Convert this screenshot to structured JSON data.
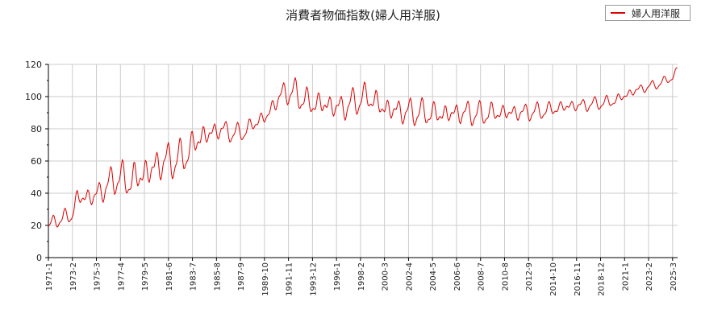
{
  "chart_data": {
    "type": "line",
    "title": "消費者物価指数(婦人用洋服)",
    "ylim": [
      0,
      120
    ],
    "y_ticks": [
      0,
      20,
      40,
      60,
      80,
      100,
      120
    ],
    "x_tick_labels": [
      "1971-1",
      "1973-2",
      "1975-3",
      "1977-4",
      "1979-5",
      "1981-6",
      "1983-7",
      "1985-8",
      "1987-9",
      "1989-10",
      "1991-11",
      "1993-12",
      "1996-1",
      "1998-2",
      "2000-3",
      "2002-4",
      "2004-5",
      "2006-6",
      "2008-7",
      "2010-8",
      "2012-9",
      "2014-10",
      "2016-11",
      "2018-12",
      "2021-1",
      "2023-2",
      "2025-3"
    ],
    "grid": true,
    "legend_position": "top-right",
    "series": [
      {
        "name": "婦人用洋服",
        "color": "#dd0000",
        "x_start": "1971-1",
        "x_end": "2025-8",
        "trend": [
          [
            1971.0,
            20
          ],
          [
            1972.0,
            24
          ],
          [
            1973.0,
            26
          ],
          [
            1973.5,
            37
          ],
          [
            1975.0,
            38
          ],
          [
            1976.0,
            44
          ],
          [
            1977.0,
            50
          ],
          [
            1978.0,
            47
          ],
          [
            1979.0,
            51
          ],
          [
            1980.0,
            55
          ],
          [
            1981.0,
            60
          ],
          [
            1982.0,
            60
          ],
          [
            1983.0,
            64
          ],
          [
            1984.0,
            74
          ],
          [
            1985.0,
            77
          ],
          [
            1986.0,
            80
          ],
          [
            1987.0,
            77
          ],
          [
            1988.0,
            78
          ],
          [
            1989.0,
            84
          ],
          [
            1990.0,
            88
          ],
          [
            1990.8,
            98
          ],
          [
            1991.6,
            103
          ],
          [
            1992.5,
            102
          ],
          [
            1993.5,
            96
          ],
          [
            1995.0,
            95
          ],
          [
            1996.5,
            93
          ],
          [
            1998.0,
            98
          ],
          [
            1998.8,
            100
          ],
          [
            2000.0,
            93
          ],
          [
            2001.5,
            91
          ],
          [
            2003.0,
            90
          ],
          [
            2005.0,
            89
          ],
          [
            2007.0,
            90
          ],
          [
            2008.5,
            89
          ],
          [
            2010.0,
            90
          ],
          [
            2012.0,
            90
          ],
          [
            2014.0,
            91
          ],
          [
            2016.0,
            94
          ],
          [
            2018.0,
            95
          ],
          [
            2020.0,
            97
          ],
          [
            2022.0,
            104
          ],
          [
            2024.0,
            108
          ],
          [
            2025.2,
            112
          ],
          [
            2025.6,
            117
          ]
        ],
        "seasonal_amplitude": [
          [
            1971.0,
            3
          ],
          [
            1976.0,
            7
          ],
          [
            1979.0,
            10
          ],
          [
            1984.0,
            8
          ],
          [
            1986.0,
            5
          ],
          [
            1989.0,
            4
          ],
          [
            1991.0,
            6
          ],
          [
            1993.0,
            7
          ],
          [
            2000.0,
            7
          ],
          [
            2008.0,
            6
          ],
          [
            2014.0,
            4
          ],
          [
            2020.0,
            3
          ],
          [
            2025.6,
            2
          ]
        ]
      }
    ]
  }
}
